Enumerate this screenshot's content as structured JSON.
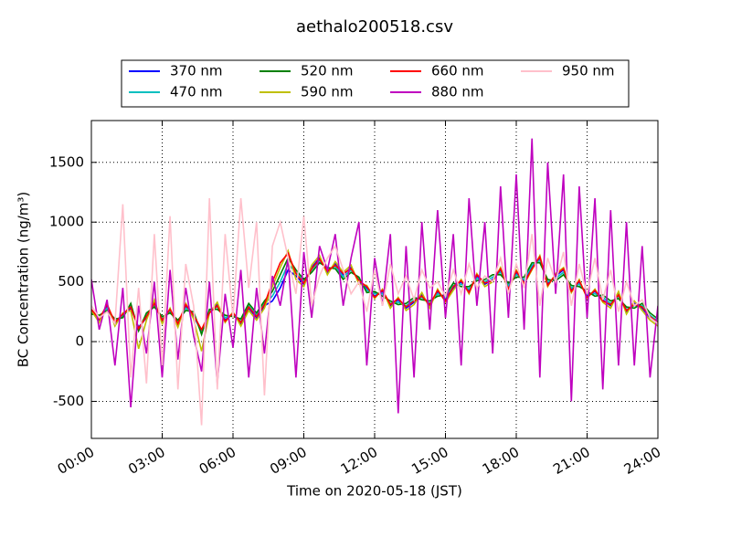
{
  "chart_data": {
    "type": "line",
    "title": "aethalo200518.csv",
    "x_label": "Time on 2020-05-18 (JST)",
    "y_label": "BC Concentration (ng/m³)",
    "x": [
      "00:00",
      "00:20",
      "00:40",
      "01:00",
      "01:20",
      "01:40",
      "02:00",
      "02:20",
      "02:40",
      "03:00",
      "03:20",
      "03:40",
      "04:00",
      "04:20",
      "04:40",
      "05:00",
      "05:20",
      "05:40",
      "06:00",
      "06:20",
      "06:40",
      "07:00",
      "07:20",
      "07:40",
      "08:00",
      "08:20",
      "08:40",
      "09:00",
      "09:20",
      "09:40",
      "10:00",
      "10:20",
      "10:40",
      "11:00",
      "11:20",
      "11:40",
      "12:00",
      "12:20",
      "12:40",
      "13:00",
      "13:20",
      "13:40",
      "14:00",
      "14:20",
      "14:40",
      "15:00",
      "15:20",
      "15:40",
      "16:00",
      "16:20",
      "16:40",
      "17:00",
      "17:20",
      "17:40",
      "18:00",
      "18:20",
      "18:40",
      "19:00",
      "19:20",
      "19:40",
      "20:00",
      "20:20",
      "20:40",
      "21:00",
      "21:20",
      "21:40",
      "22:00",
      "22:20",
      "22:40",
      "23:00",
      "23:20",
      "23:40",
      "24:00"
    ],
    "series": [
      {
        "name": "370 nm",
        "color": "#0000ff",
        "values": [
          250,
          180,
          300,
          150,
          220,
          280,
          120,
          200,
          330,
          170,
          260,
          140,
          300,
          210,
          90,
          250,
          310,
          180,
          230,
          150,
          280,
          200,
          300,
          340,
          450,
          600,
          550,
          480,
          620,
          700,
          580,
          650,
          560,
          620,
          500,
          450,
          380,
          420,
          300,
          350,
          280,
          330,
          390,
          300,
          420,
          350,
          450,
          500,
          420,
          550,
          480,
          520,
          600,
          450,
          580,
          500,
          620,
          700,
          480,
          550,
          600,
          430,
          500,
          380,
          420,
          350,
          300,
          400,
          250,
          320,
          280,
          200,
          150
        ]
      },
      {
        "name": "470 nm",
        "color": "#00bfbf",
        "values": [
          240,
          200,
          280,
          170,
          210,
          300,
          100,
          220,
          310,
          190,
          250,
          160,
          280,
          230,
          70,
          260,
          290,
          200,
          220,
          170,
          300,
          220,
          320,
          380,
          500,
          650,
          580,
          500,
          600,
          680,
          600,
          630,
          540,
          600,
          520,
          430,
          400,
          400,
          320,
          330,
          300,
          350,
          370,
          320,
          400,
          370,
          470,
          480,
          440,
          530,
          500,
          540,
          580,
          470,
          560,
          520,
          640,
          680,
          500,
          530,
          580,
          450,
          480,
          400,
          400,
          370,
          320,
          380,
          270,
          300,
          300,
          220,
          170
        ]
      },
      {
        "name": "520 nm",
        "color": "#008000",
        "values": [
          230,
          220,
          260,
          190,
          200,
          320,
          90,
          240,
          290,
          210,
          240,
          180,
          260,
          250,
          60,
          270,
          270,
          220,
          210,
          190,
          320,
          240,
          340,
          420,
          560,
          700,
          600,
          520,
          580,
          660,
          620,
          610,
          520,
          580,
          540,
          410,
          420,
          380,
          340,
          310,
          320,
          370,
          350,
          340,
          380,
          390,
          490,
          460,
          460,
          510,
          520,
          560,
          560,
          490,
          540,
          540,
          660,
          660,
          520,
          510,
          560,
          470,
          460,
          420,
          380,
          390,
          340,
          360,
          290,
          280,
          320,
          240,
          190
        ]
      },
      {
        "name": "590 nm",
        "color": "#bfbf00",
        "values": [
          260,
          160,
          320,
          130,
          240,
          260,
          -60,
          180,
          350,
          150,
          280,
          120,
          320,
          190,
          -80,
          240,
          330,
          160,
          250,
          130,
          260,
          180,
          280,
          460,
          620,
          760,
          520,
          460,
          640,
          720,
          560,
          670,
          580,
          640,
          480,
          470,
          360,
          440,
          280,
          370,
          260,
          310,
          410,
          280,
          440,
          330,
          430,
          520,
          400,
          570,
          460,
          500,
          620,
          430,
          600,
          480,
          600,
          720,
          460,
          570,
          620,
          410,
          520,
          360,
          440,
          330,
          280,
          420,
          230,
          340,
          260,
          180,
          130
        ]
      },
      {
        "name": "660 nm",
        "color": "#ff0000",
        "values": [
          270,
          190,
          310,
          160,
          230,
          290,
          110,
          210,
          320,
          180,
          270,
          150,
          310,
          220,
          100,
          240,
          300,
          170,
          240,
          160,
          290,
          210,
          310,
          500,
          660,
          740,
          570,
          490,
          610,
          690,
          590,
          640,
          570,
          610,
          510,
          460,
          370,
          430,
          310,
          360,
          290,
          340,
          380,
          310,
          430,
          340,
          460,
          510,
          410,
          560,
          490,
          510,
          610,
          440,
          590,
          490,
          610,
          710,
          470,
          560,
          610,
          420,
          510,
          370,
          430,
          340,
          310,
          390,
          260,
          310,
          290,
          210,
          160
        ]
      },
      {
        "name": "880 nm",
        "color": "#bf00bf",
        "values": [
          520,
          100,
          350,
          -200,
          450,
          -550,
          300,
          -100,
          500,
          -300,
          600,
          -150,
          450,
          50,
          -250,
          500,
          -350,
          400,
          -50,
          600,
          -300,
          450,
          -100,
          550,
          300,
          700,
          -300,
          750,
          200,
          800,
          600,
          900,
          300,
          700,
          1000,
          -200,
          700,
          300,
          900,
          -600,
          800,
          -300,
          1000,
          100,
          1100,
          200,
          900,
          -200,
          1200,
          300,
          1000,
          -100,
          1300,
          200,
          1400,
          100,
          1700,
          -300,
          1500,
          400,
          1400,
          -500,
          1300,
          200,
          1200,
          -400,
          1100,
          -200,
          1000,
          -200,
          800,
          -300,
          300
        ]
      },
      {
        "name": "950 nm",
        "color": "#ffc0cb",
        "values": [
          300,
          200,
          250,
          150,
          1150,
          -300,
          450,
          -350,
          900,
          -200,
          1050,
          -400,
          650,
          300,
          -700,
          1200,
          -400,
          900,
          200,
          1200,
          450,
          1000,
          -450,
          800,
          1000,
          700,
          400,
          1050,
          300,
          550,
          700,
          800,
          600,
          400,
          500,
          250,
          600,
          300,
          650,
          400,
          550,
          350,
          600,
          450,
          500,
          380,
          600,
          400,
          650,
          450,
          550,
          500,
          700,
          400,
          650,
          450,
          900,
          300,
          700,
          500,
          750,
          300,
          650,
          400,
          700,
          350,
          600,
          250,
          500,
          300,
          350,
          200,
          150
        ]
      }
    ],
    "xlim": [
      "00:00",
      "24:00"
    ],
    "xticks": [
      "00:00",
      "03:00",
      "06:00",
      "09:00",
      "12:00",
      "15:00",
      "18:00",
      "21:00",
      "24:00"
    ],
    "ylim": [
      -810,
      1850
    ],
    "yticks": [
      -500,
      0,
      500,
      1000,
      1500
    ],
    "grid": true,
    "legend": "upper center"
  }
}
